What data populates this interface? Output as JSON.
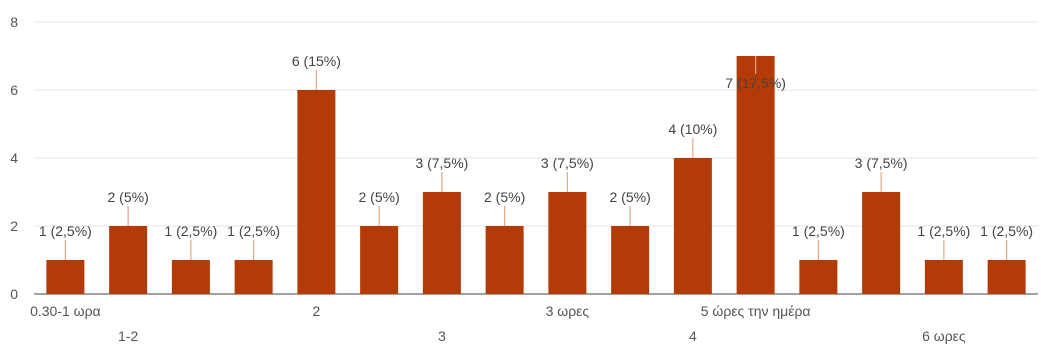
{
  "chart_data": {
    "type": "bar",
    "categories": [
      "0.30-1 ωρα",
      "1-2",
      "",
      "",
      "2",
      "",
      "3",
      "",
      "3 ωρες",
      "",
      "4",
      "5 ώρες την ημέρα",
      "",
      "",
      "6 ωρες",
      ""
    ],
    "values": [
      1,
      2,
      1,
      1,
      6,
      2,
      3,
      2,
      3,
      2,
      4,
      7,
      1,
      3,
      1,
      1
    ],
    "data_labels": [
      "1 (2,5%)",
      "2 (5%)",
      "1 (2,5%)",
      "1 (2,5%)",
      "6 (15%)",
      "2 (5%)",
      "3 (7,5%)",
      "2 (5%)",
      "3 (7,5%)",
      "2 (5%)",
      "4 (10%)",
      "7 (17,5%)",
      "1 (2,5%)",
      "3 (7,5%)",
      "1 (2,5%)",
      "1 (2,5%)"
    ],
    "ylim": [
      0,
      8
    ],
    "yticks": [
      "0",
      "2",
      "4",
      "6",
      "8"
    ],
    "grid": true,
    "bar_color": "#b23b08",
    "leader_color": "#e6a58a"
  }
}
